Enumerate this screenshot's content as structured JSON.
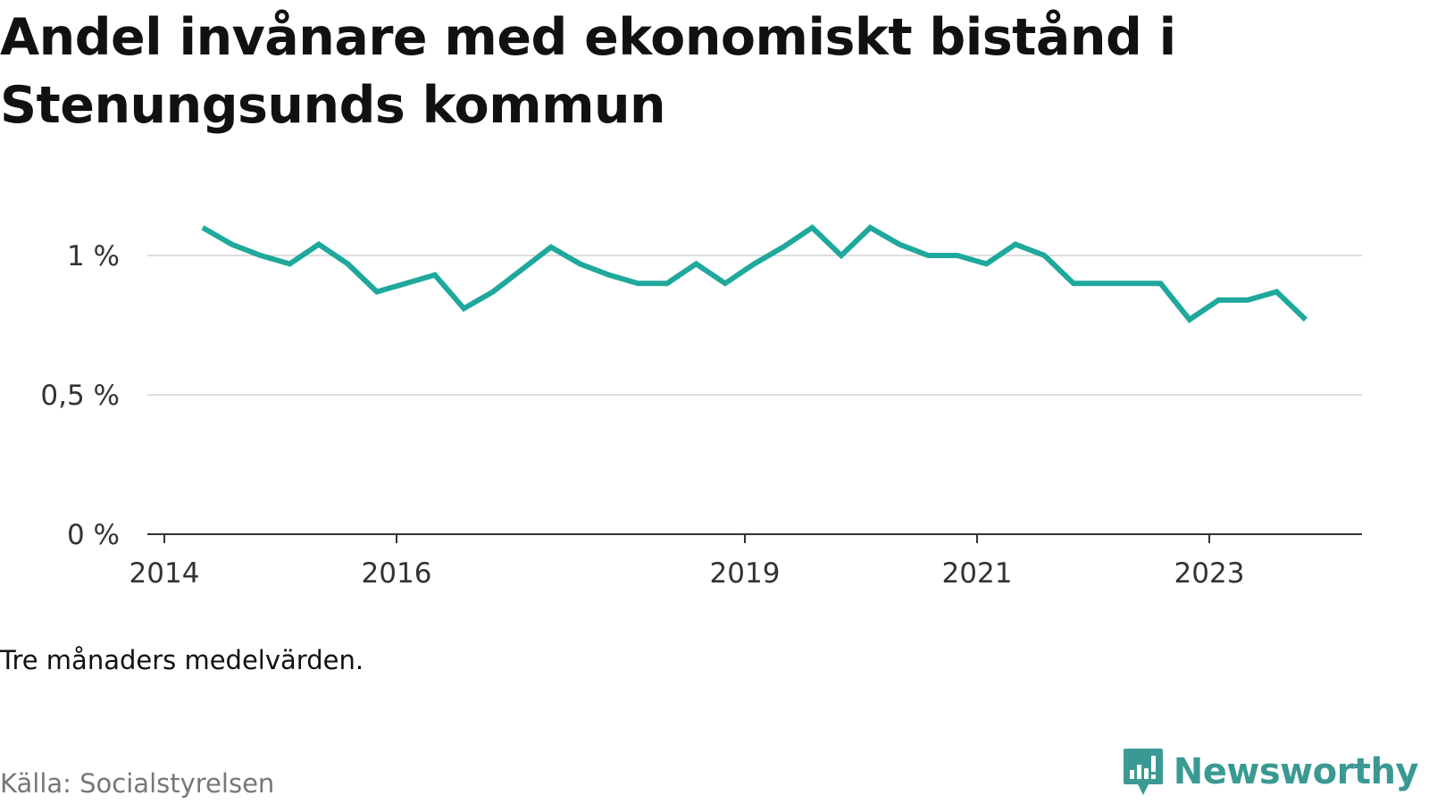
{
  "title": "Andel invånare med ekonomiskt bistånd i Stenungsunds kommun",
  "note": "Tre månaders medelvärden.",
  "source": "Källa: Socialstyrelsen",
  "brand": {
    "name": "Newsworthy",
    "icon": "newsworthy-logo-icon",
    "color": "#3a9a93"
  },
  "colors": {
    "line": "#1fa89c",
    "grid": "#dddddd",
    "axis": "#333333"
  },
  "chart_data": {
    "type": "line",
    "title": "Andel invånare med ekonomiskt bistånd i Stenungsunds kommun",
    "xlabel": "",
    "ylabel": "",
    "xlim": [
      2014,
      2024.6
    ],
    "ylim": [
      0,
      1.1
    ],
    "x_ticks": [
      {
        "value": 2014,
        "label": "2014"
      },
      {
        "value": 2016,
        "label": "2016"
      },
      {
        "value": 2019,
        "label": "2019"
      },
      {
        "value": 2021,
        "label": "2021"
      },
      {
        "value": 2023,
        "label": "2023"
      }
    ],
    "y_ticks": [
      {
        "value": 0,
        "label": "0 %"
      },
      {
        "value": 0.5,
        "label": "0,5 %"
      },
      {
        "value": 1,
        "label": "1 %"
      }
    ],
    "grid": true,
    "legend": "none",
    "series": [
      {
        "x": [
          2014.33,
          2014.58,
          2014.83,
          2015.08,
          2015.33,
          2015.58,
          2015.83,
          2016.08,
          2016.33,
          2016.58,
          2016.83,
          2017.08,
          2017.33,
          2017.58,
          2017.83,
          2018.08,
          2018.33,
          2018.58,
          2018.83,
          2019.08,
          2019.33,
          2019.58,
          2019.83,
          2020.08,
          2020.33,
          2020.58,
          2020.83,
          2021.08,
          2021.33,
          2021.58,
          2021.83,
          2022.08,
          2022.33,
          2022.58,
          2022.83,
          2023.08,
          2023.33,
          2023.58,
          2023.83
        ],
        "values": [
          1.1,
          1.04,
          1.0,
          0.97,
          1.04,
          0.97,
          0.87,
          0.9,
          0.93,
          0.81,
          0.87,
          0.95,
          1.03,
          0.97,
          0.93,
          0.9,
          0.9,
          0.97,
          0.9,
          0.97,
          1.03,
          1.1,
          1.0,
          1.1,
          1.04,
          1.0,
          1.0,
          0.97,
          1.04,
          1.0,
          0.9,
          0.9,
          0.9,
          0.9,
          0.77,
          0.84,
          0.84,
          0.87,
          0.77
        ]
      }
    ]
  }
}
